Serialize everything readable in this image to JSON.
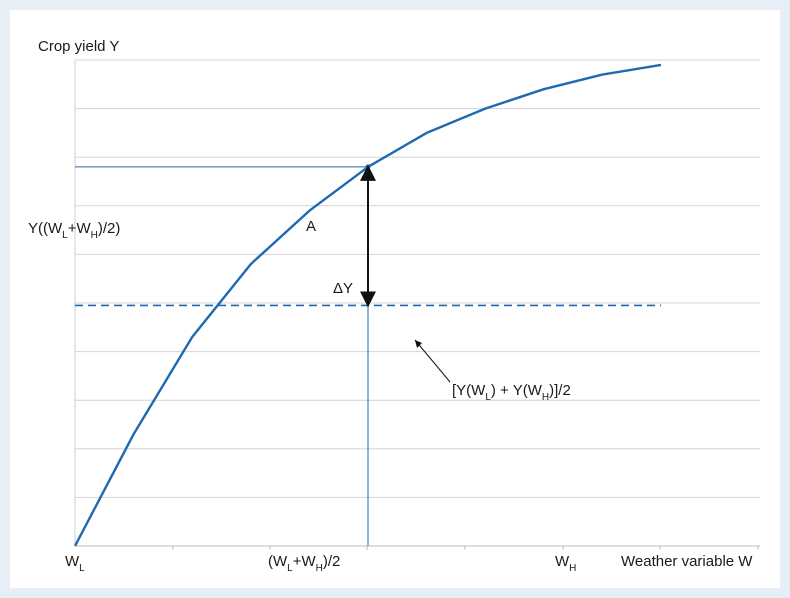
{
  "chart_data": {
    "type": "line",
    "ylabel": "Crop yield Y",
    "xlabel": "Weather variable W",
    "x_tick_labels": [
      {
        "base": "W",
        "sub": "L",
        "tail": ""
      },
      {
        "base": "(W",
        "sub": "L",
        "mid": "+W",
        "sub2": "H",
        "tail": ")/2"
      },
      {
        "base": "W",
        "sub": "H",
        "tail": ""
      }
    ],
    "y_marker_label": {
      "base": "Y((W",
      "sub": "L",
      "mid": "+W",
      "sub2": "H",
      "tail": ")/2)"
    },
    "point_label": "A",
    "delta_label": "ΔY",
    "dashed_label": {
      "p1": "[Y(W",
      "sub": "L",
      "p2": ") + Y(W",
      "sub2": "H",
      "p3": ")]/2"
    },
    "series": [
      {
        "style": "solid",
        "color": "#1f69b0",
        "x": [
          0,
          0.1,
          0.2,
          0.3,
          0.4,
          0.5,
          0.6,
          0.7,
          0.8,
          0.9,
          1.0
        ],
        "y": [
          0,
          0.23,
          0.43,
          0.58,
          0.69,
          0.78,
          0.85,
          0.9,
          0.94,
          0.97,
          0.99
        ]
      }
    ],
    "x_range": [
      0,
      1
    ],
    "y_range": [
      0,
      1.0
    ],
    "midpoint_x": 0.5,
    "midpoint_y": 0.78,
    "average_y": 0.495,
    "grid": "horizontal",
    "colors": {
      "curve": "#1f69b0",
      "grid": "#d4d4d4",
      "arrow": "#111111",
      "background": "#e8eef6"
    }
  }
}
